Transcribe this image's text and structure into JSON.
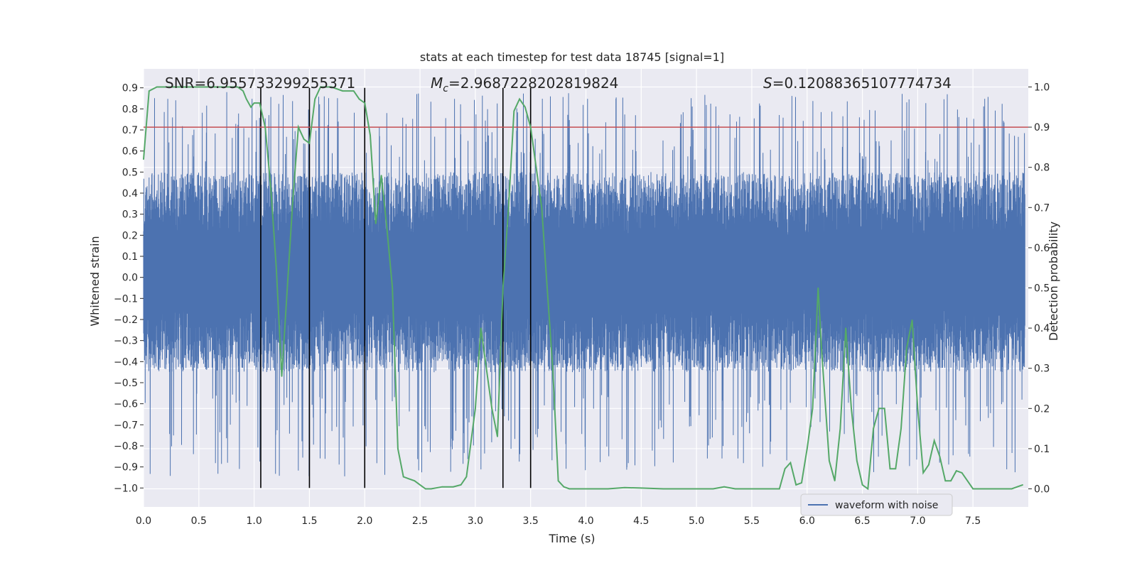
{
  "chart_data": {
    "type": "line",
    "title": "stats at each timestep for test data 18745 [signal=1]",
    "xlabel": "Time (s)",
    "ylabel": "Whitened strain",
    "y2label": "Detection probability",
    "xlim": [
      0.0,
      8.0
    ],
    "ylim": [
      -1.09,
      0.99
    ],
    "y2lim": [
      -0.045,
      1.045
    ],
    "xticks": [
      "0.0",
      "0.5",
      "1.0",
      "1.5",
      "2.0",
      "2.5",
      "3.0",
      "3.5",
      "4.0",
      "4.5",
      "5.0",
      "5.5",
      "6.0",
      "6.5",
      "7.0",
      "7.5"
    ],
    "yticks": [
      "0.9",
      "0.8",
      "0.7",
      "0.6",
      "0.5",
      "0.4",
      "0.3",
      "0.2",
      "0.1",
      "0.0",
      "-0.1",
      "-0.2",
      "-0.3",
      "-0.4",
      "-0.5",
      "-0.6",
      "-0.7",
      "-0.8",
      "-0.9",
      "-1.0"
    ],
    "y2ticks": [
      "1.0",
      "0.9",
      "0.8",
      "0.7",
      "0.6",
      "0.5",
      "0.4",
      "0.3",
      "0.2",
      "0.1",
      "0.0"
    ],
    "grid": true,
    "annotations": {
      "snr": "SNR=6.955733299255371",
      "mc_symbol": "M",
      "mc_sub": "c",
      "mc_value": "=2.9687228202819824",
      "s_symbol": "S",
      "s_value": "=0.12088365107774734"
    },
    "threshold": {
      "axis": "right",
      "value": 0.9,
      "color": "#c44e52"
    },
    "vertical_lines": {
      "x": [
        1.06,
        1.5,
        2.0,
        3.25,
        3.5
      ],
      "ymin": -1.0,
      "ymax": 0.9,
      "color": "#000000"
    },
    "series": [
      {
        "name": "waveform with noise",
        "axis": "left",
        "color": "#4c72b0",
        "kind": "dense-noise",
        "x_range": [
          0.0,
          7.97
        ],
        "envelope_typical": [
          -0.45,
          0.5
        ],
        "peak_max": 0.9,
        "peak_min": -1.0
      },
      {
        "name": "",
        "axis": "right",
        "color": "#55a868",
        "x": [
          0.0,
          0.05,
          0.12,
          0.5,
          0.85,
          0.9,
          0.93,
          0.97,
          1.0,
          1.05,
          1.1,
          1.15,
          1.2,
          1.25,
          1.3,
          1.35,
          1.4,
          1.45,
          1.5,
          1.55,
          1.6,
          1.65,
          1.7,
          1.8,
          1.9,
          1.95,
          2.0,
          2.05,
          2.1,
          2.15,
          2.2,
          2.25,
          2.3,
          2.35,
          2.4,
          2.45,
          2.5,
          2.55,
          2.6,
          2.7,
          2.8,
          2.87,
          2.92,
          3.0,
          3.05,
          3.1,
          3.15,
          3.2,
          3.25,
          3.3,
          3.35,
          3.4,
          3.45,
          3.5,
          3.55,
          3.6,
          3.65,
          3.7,
          3.75,
          3.8,
          3.85,
          3.9,
          4.0,
          4.2,
          4.35,
          4.5,
          4.7,
          5.0,
          5.15,
          5.25,
          5.35,
          5.5,
          5.6,
          5.7,
          5.75,
          5.8,
          5.85,
          5.9,
          5.95,
          6.0,
          6.05,
          6.1,
          6.13,
          6.2,
          6.25,
          6.3,
          6.35,
          6.4,
          6.45,
          6.5,
          6.55,
          6.6,
          6.65,
          6.7,
          6.75,
          6.8,
          6.85,
          6.9,
          6.95,
          7.0,
          7.05,
          7.1,
          7.15,
          7.2,
          7.25,
          7.3,
          7.35,
          7.4,
          7.45,
          7.5,
          7.6,
          7.7,
          7.8,
          7.85,
          7.9,
          7.95
        ],
        "values": [
          0.82,
          0.99,
          1.0,
          1.0,
          1.0,
          0.99,
          0.97,
          0.95,
          0.96,
          0.96,
          0.9,
          0.75,
          0.55,
          0.28,
          0.5,
          0.72,
          0.9,
          0.87,
          0.86,
          0.97,
          1.0,
          1.0,
          1.0,
          0.99,
          0.99,
          0.97,
          0.96,
          0.88,
          0.66,
          0.78,
          0.65,
          0.5,
          0.1,
          0.03,
          0.025,
          0.02,
          0.01,
          0.0,
          0.0,
          0.005,
          0.005,
          0.01,
          0.03,
          0.2,
          0.4,
          0.3,
          0.2,
          0.13,
          0.5,
          0.7,
          0.94,
          0.97,
          0.95,
          0.9,
          0.8,
          0.7,
          0.5,
          0.3,
          0.02,
          0.005,
          0.0,
          0.0,
          0.0,
          0.0,
          0.003,
          0.002,
          0.0,
          0.0,
          0.0,
          0.005,
          0.0,
          0.0,
          0.0,
          0.0,
          0.0,
          0.05,
          0.065,
          0.01,
          0.015,
          0.1,
          0.2,
          0.5,
          0.35,
          0.07,
          0.02,
          0.15,
          0.4,
          0.2,
          0.07,
          0.01,
          0.0,
          0.15,
          0.2,
          0.2,
          0.05,
          0.05,
          0.15,
          0.35,
          0.42,
          0.2,
          0.04,
          0.06,
          0.12,
          0.08,
          0.02,
          0.02,
          0.045,
          0.04,
          0.02,
          0.0,
          0.0,
          0.0,
          0.0,
          0.0,
          0.005,
          0.01
        ]
      }
    ],
    "legend": {
      "placement": "lower-center-right",
      "entries": [
        "waveform with noise"
      ]
    }
  },
  "colors": {
    "axes_bg": "#eaeaf2",
    "grid": "#ffffff",
    "text": "#262626"
  }
}
